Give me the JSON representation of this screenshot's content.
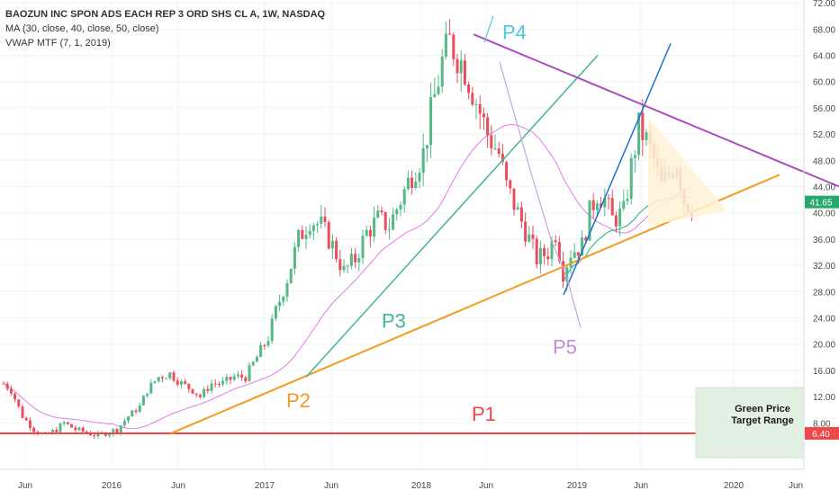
{
  "legend": {
    "title": "BAOZUN INC SPON ADS EACH REP 3 ORD SHS CL A, 1W, NASDAQ",
    "ma": "MA (30, close, 40, close, 50, close)",
    "vwap": "VWAP MTF (7, 1, 2019)"
  },
  "chart_data": {
    "type": "candlestick",
    "x_ticks": [
      "Jun",
      "2016",
      "Jun",
      "2017",
      "Jun",
      "2018",
      "Jun",
      "2019",
      "Jun",
      "2020",
      "Jun"
    ],
    "y_ticks": [
      "72.00",
      "68.00",
      "64.00",
      "60.00",
      "56.00",
      "52.00",
      "48.00",
      "44.00",
      "40.00",
      "36.00",
      "32.00",
      "28.00",
      "24.00",
      "20.00",
      "16.00",
      "12.00",
      "8.00"
    ],
    "ylim": [
      4.8,
      73.6
    ],
    "last_price": "41.65",
    "support_price": "6.40",
    "annotations": [
      "P1",
      "P2",
      "P3",
      "P4",
      "P5"
    ],
    "box_label": "Green Price\nTarget Range",
    "colors": {
      "up": "#53b987",
      "down": "#eb4d5c",
      "support": "#f0474b",
      "orange": "#f59a1f",
      "teal": "#3fb59a",
      "blue": "#1f6fd1",
      "purple": "#ad4fbf",
      "pink": "#e27be8",
      "p4": "#4ec9d8"
    },
    "price_path": [
      [
        0,
        14
      ],
      [
        2,
        13
      ],
      [
        5,
        9
      ],
      [
        8,
        7
      ],
      [
        11,
        6
      ],
      [
        14,
        7
      ],
      [
        16,
        8
      ],
      [
        19,
        7
      ],
      [
        22,
        6.5
      ],
      [
        25,
        6
      ],
      [
        27,
        6.5
      ],
      [
        30,
        7
      ],
      [
        33,
        9
      ],
      [
        36,
        10.5
      ],
      [
        38,
        13
      ],
      [
        41,
        15
      ],
      [
        44,
        15.5
      ],
      [
        47,
        14
      ],
      [
        50,
        13
      ],
      [
        52,
        12
      ],
      [
        55,
        14
      ],
      [
        58,
        14
      ],
      [
        61,
        15
      ],
      [
        64,
        15
      ],
      [
        67,
        18
      ],
      [
        70,
        21
      ],
      [
        72,
        25
      ],
      [
        75,
        30
      ],
      [
        78,
        36
      ],
      [
        81,
        39
      ],
      [
        84,
        38
      ],
      [
        87,
        35
      ],
      [
        90,
        31
      ],
      [
        93,
        33
      ],
      [
        96,
        37
      ],
      [
        99,
        39
      ],
      [
        102,
        38
      ],
      [
        105,
        42
      ],
      [
        108,
        46
      ],
      [
        111,
        49
      ],
      [
        113,
        55
      ],
      [
        116,
        63
      ],
      [
        118,
        66
      ],
      [
        120,
        64
      ],
      [
        122,
        62
      ],
      [
        125,
        57
      ],
      [
        128,
        52
      ],
      [
        131,
        49
      ],
      [
        133,
        44
      ],
      [
        136,
        40
      ],
      [
        139,
        36
      ],
      [
        141,
        33
      ],
      [
        144,
        34
      ],
      [
        146,
        37
      ],
      [
        148,
        31
      ],
      [
        150,
        34
      ],
      [
        153,
        35
      ],
      [
        155,
        40
      ],
      [
        157,
        43
      ],
      [
        159,
        42
      ],
      [
        161,
        39
      ],
      [
        164,
        40
      ],
      [
        166,
        47
      ],
      [
        168,
        53
      ],
      [
        170,
        51
      ],
      [
        172,
        48
      ],
      [
        174,
        44
      ],
      [
        176,
        46
      ],
      [
        178,
        48
      ],
      [
        180,
        42
      ],
      [
        182,
        41
      ]
    ]
  }
}
